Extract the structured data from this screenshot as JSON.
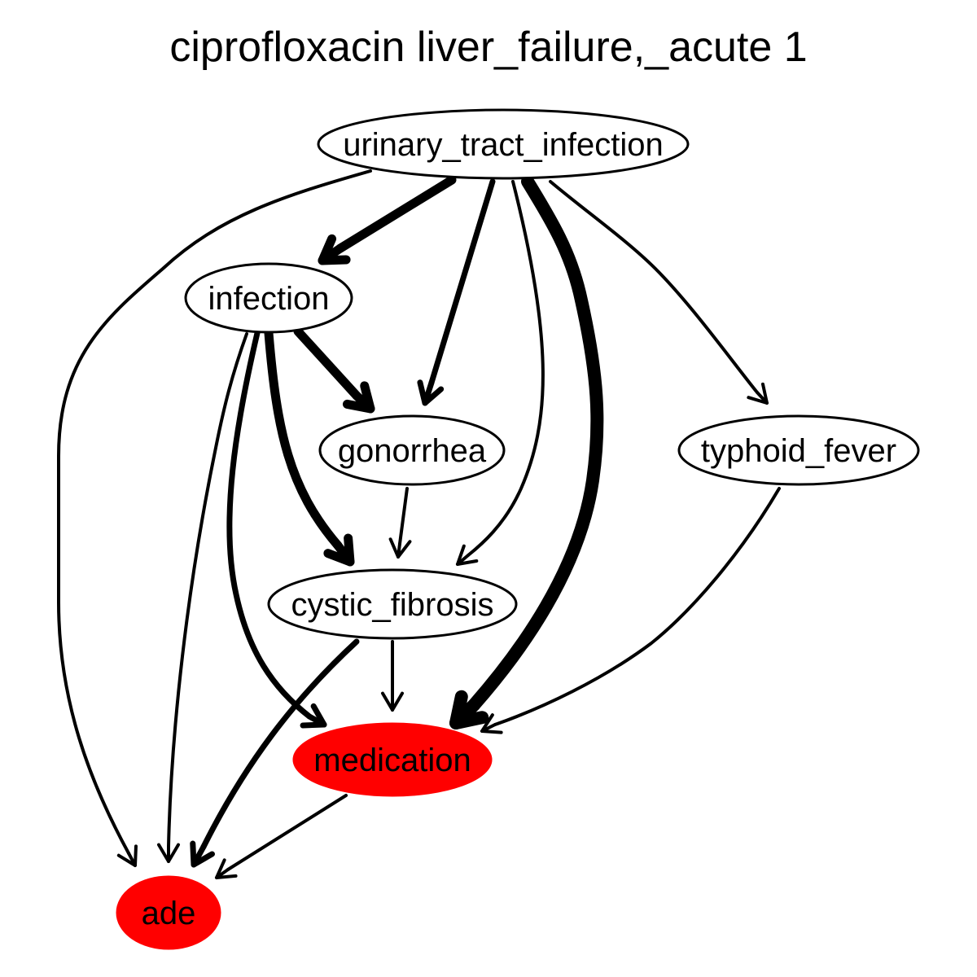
{
  "title": "ciprofloxacin liver_failure,_acute 1",
  "colors": {
    "highlight": "#ff0000",
    "stroke": "#000000",
    "background": "#ffffff"
  },
  "nodes": [
    {
      "id": "urinary_tract_infection",
      "label": "urinary_tract_infection",
      "highlight": false
    },
    {
      "id": "infection",
      "label": "infection",
      "highlight": false
    },
    {
      "id": "gonorrhea",
      "label": "gonorrhea",
      "highlight": false
    },
    {
      "id": "typhoid_fever",
      "label": "typhoid_fever",
      "highlight": false
    },
    {
      "id": "cystic_fibrosis",
      "label": "cystic_fibrosis",
      "highlight": false
    },
    {
      "id": "medication",
      "label": "medication",
      "highlight": true
    },
    {
      "id": "ade",
      "label": "ade",
      "highlight": true
    }
  ],
  "edges": [
    {
      "from": "urinary_tract_infection",
      "to": "infection",
      "weight": "heavy"
    },
    {
      "from": "urinary_tract_infection",
      "to": "gonorrhea",
      "weight": "medium"
    },
    {
      "from": "urinary_tract_infection",
      "to": "cystic_fibrosis",
      "weight": "light"
    },
    {
      "from": "urinary_tract_infection",
      "to": "medication",
      "weight": "heaviest"
    },
    {
      "from": "urinary_tract_infection",
      "to": "typhoid_fever",
      "weight": "light"
    },
    {
      "from": "urinary_tract_infection",
      "to": "ade",
      "weight": "light"
    },
    {
      "from": "infection",
      "to": "gonorrhea",
      "weight": "heavy"
    },
    {
      "from": "infection",
      "to": "cystic_fibrosis",
      "weight": "heavy"
    },
    {
      "from": "infection",
      "to": "medication",
      "weight": "medium"
    },
    {
      "from": "infection",
      "to": "ade",
      "weight": "light"
    },
    {
      "from": "gonorrhea",
      "to": "cystic_fibrosis",
      "weight": "light"
    },
    {
      "from": "typhoid_fever",
      "to": "medication",
      "weight": "light"
    },
    {
      "from": "cystic_fibrosis",
      "to": "medication",
      "weight": "light"
    },
    {
      "from": "cystic_fibrosis",
      "to": "ade",
      "weight": "medium"
    },
    {
      "from": "medication",
      "to": "ade",
      "weight": "light"
    }
  ]
}
